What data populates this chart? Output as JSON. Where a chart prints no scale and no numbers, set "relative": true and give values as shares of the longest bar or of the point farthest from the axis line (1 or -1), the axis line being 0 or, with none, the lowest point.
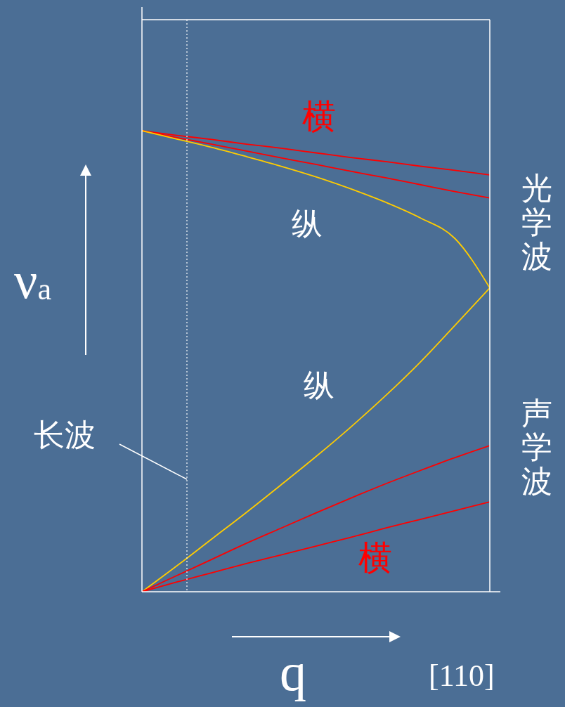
{
  "chart_data": {
    "type": "line",
    "relative": true,
    "xlabel": "q",
    "ylabel": "ν$_{a}$",
    "categories": [
      null,
      null,
      null,
      null,
      null,
      null,
      null,
      null,
      null,
      null,
      null
    ],
    "series": [
      {
        "color": "#ff0000",
        "values": [
          1,
          0.99,
          0.981,
          0.971,
          0.962,
          0.952,
          0.942,
          0.933,
          0.923,
          0.914,
          0.904
        ]
      },
      {
        "color": "#ff0000",
        "values": [
          1,
          0.985,
          0.971,
          0.956,
          0.941,
          0.927,
          0.912,
          0.898,
          0.883,
          0.868,
          0.854
        ]
      },
      {
        "color": "#ffcc00",
        "values": [
          1,
          0.982,
          0.964,
          0.944,
          0.923,
          0.9,
          0.874,
          0.845,
          0.811,
          0.766,
          0.659
        ]
      },
      {
        "color": "#ffcc00",
        "values": [
          0,
          0.056,
          0.114,
          0.172,
          0.232,
          0.293,
          0.357,
          0.425,
          0.498,
          0.578,
          0.659
        ]
      },
      {
        "color": "#ff0000",
        "values": [
          0,
          0.035,
          0.07,
          0.105,
          0.138,
          0.171,
          0.203,
          0.234,
          0.263,
          0.291,
          0.317
        ]
      },
      {
        "color": "#ff0000",
        "values": [
          0,
          0.021,
          0.041,
          0.061,
          0.08,
          0.099,
          0.118,
          0.138,
          0.157,
          0.176,
          0.195
        ]
      }
    ],
    "annotations": [
      "横",
      "纵",
      "纵",
      "横",
      "光学波",
      "声学波",
      "长波",
      "[110]"
    ],
    "marker": "none",
    "line_style": "solid",
    "grid": false,
    "legend": false
  }
}
